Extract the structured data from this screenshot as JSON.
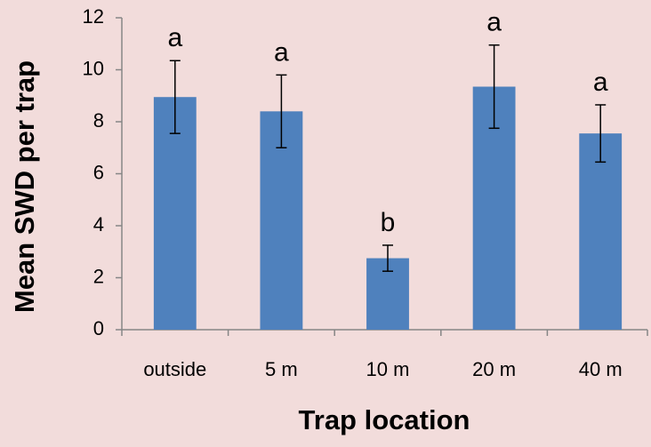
{
  "chart_data": {
    "type": "bar",
    "x_label": "Trap location",
    "y_label": "Mean SWD per trap",
    "categories": [
      "outside",
      "5 m",
      "10 m",
      "20 m",
      "40 m"
    ],
    "values": [
      8.95,
      8.4,
      2.75,
      9.35,
      7.55
    ],
    "errors": [
      1.4,
      1.4,
      0.5,
      1.6,
      1.1
    ],
    "annotations": [
      "a",
      "a",
      "b",
      "a",
      "a"
    ],
    "color": "#4f81bd",
    "ylim": [
      0,
      12
    ],
    "yticks": [
      0,
      2,
      4,
      6,
      8,
      10,
      12
    ],
    "grid": false
  }
}
